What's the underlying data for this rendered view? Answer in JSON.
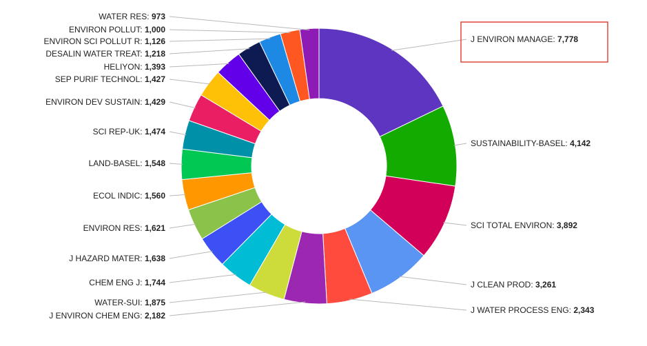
{
  "chart_data": {
    "type": "pie",
    "donut": true,
    "title": "",
    "highlighted_category": "J ENVIRON MANAGE",
    "categories": [
      "J ENVIRON MANAGE",
      "SUSTAINABILITY-BASEL",
      "SCI TOTAL ENVIRON",
      "J CLEAN PROD",
      "J WATER PROCESS ENG",
      "J ENVIRON CHEM ENG",
      "WATER-SUI",
      "CHEM ENG J",
      "J HAZARD MATER",
      "ENVIRON RES",
      "ECOL INDIC",
      "LAND-BASEL",
      "SCI REP-UK",
      "ENVIRON DEV SUSTAIN",
      "SEP PURIF TECHNOL",
      "HELIYON",
      "DESALIN WATER TREAT",
      "ENVIRON SCI POLLUT R",
      "ENVIRON POLLUT",
      "WATER RES"
    ],
    "values": [
      7778,
      4142,
      3892,
      3261,
      2343,
      2182,
      1875,
      1744,
      1638,
      1621,
      1560,
      1548,
      1474,
      1429,
      1427,
      1393,
      1218,
      1126,
      1000,
      973
    ],
    "value_labels": [
      "7,778",
      "4,142",
      "3,892",
      "3,261",
      "2,343",
      "2,182",
      "1,875",
      "1,744",
      "1,638",
      "1,621",
      "1,560",
      "1,548",
      "1,474",
      "1,429",
      "1,427",
      "1,393",
      "1,218",
      "1,126",
      "1,000",
      "973"
    ],
    "colors": [
      "#5e35c0",
      "#13ab00",
      "#d3005a",
      "#5a95f4",
      "#ff4a3e",
      "#9c27b0",
      "#cddc3a",
      "#00bcd4",
      "#3d50f5",
      "#8bc34a",
      "#ff9800",
      "#00c853",
      "#0091a8",
      "#e91e63",
      "#ffc107",
      "#6200ea",
      "#0d1b52",
      "#1e88e5",
      "#ff5722",
      "#8e1bb4"
    ],
    "legend": "none"
  }
}
